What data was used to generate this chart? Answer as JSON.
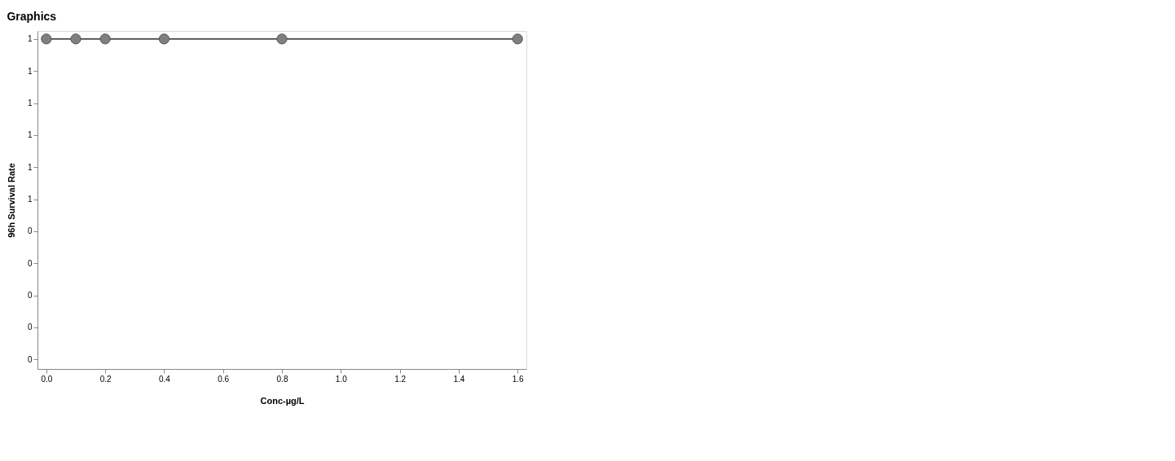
{
  "chart_data": {
    "type": "line",
    "title": "Graphics",
    "xlabel": "Conc-µg/L",
    "ylabel": "96h Survival Rate",
    "x": [
      0,
      0.1,
      0.2,
      0.4,
      0.8,
      1.6
    ],
    "series": [
      {
        "color": "#808080",
        "values": [
          1,
          1,
          1,
          1,
          1,
          1
        ]
      }
    ],
    "marker": "circle",
    "line_style": "solid",
    "grid": false,
    "xlim": [
      -0.03,
      1.63
    ],
    "xticks": [
      {
        "value": 0,
        "label": "0.0"
      },
      0.2,
      0.4,
      0.6,
      0.8,
      {
        "value": 1,
        "label": "1.0"
      },
      1.2,
      1.4,
      1.6
    ],
    "ylim": [
      -0.03,
      1.025
    ],
    "yticks": [
      {
        "value": 0,
        "label": "0"
      },
      {
        "value": 0.1,
        "label": "0"
      },
      {
        "value": 0.2,
        "label": "0"
      },
      {
        "value": 0.3,
        "label": "0"
      },
      {
        "value": 0.4,
        "label": "0"
      },
      {
        "value": 0.5,
        "label": "1"
      },
      {
        "value": 0.6,
        "label": "1"
      },
      {
        "value": 0.7,
        "label": "1"
      },
      {
        "value": 0.8,
        "label": "1"
      },
      {
        "value": 0.9,
        "label": "1"
      },
      {
        "value": 1,
        "label": "1"
      }
    ]
  }
}
